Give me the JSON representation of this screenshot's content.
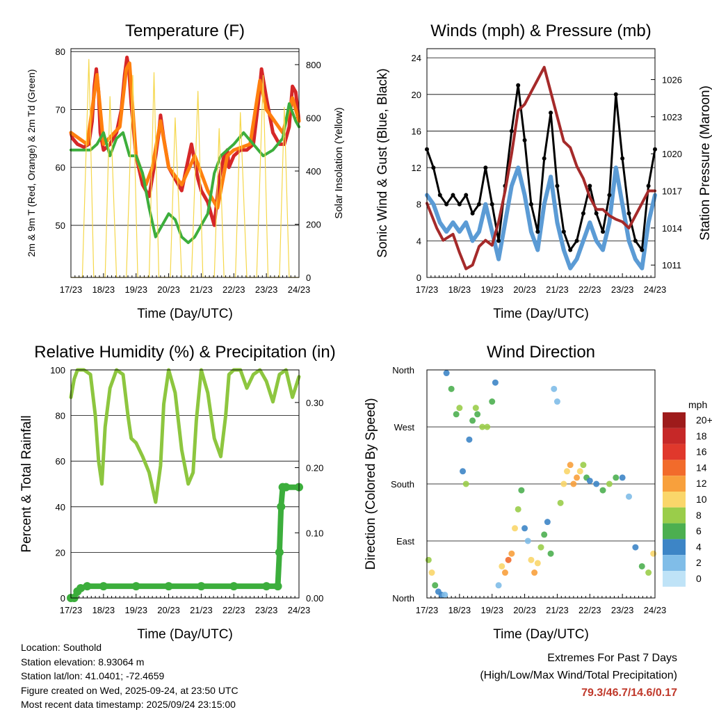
{
  "panels": {
    "temperature": {
      "title": "Temperature (F)",
      "ylabel_left": "2m & 9m T (Red, Orange) & 2m Td (Green)",
      "ylabel_right": "Solar Insolation (Yellow)",
      "xlabel": "Time (Day/UTC)"
    },
    "winds": {
      "title": "Winds (mph) & Pressure (mb)",
      "ylabel_left": "Sonic Wind & Gust (Blue, Black)",
      "ylabel_right": "Station Pressure (Maroon)",
      "xlabel": "Time (Day/UTC)"
    },
    "humidity": {
      "title": "Relative Humidity (%) & Precipitation (in)",
      "ylabel_left": "Percent & Total Rainfall",
      "xlabel": "Time (Day/UTC)"
    },
    "direction": {
      "title": "Wind Direction",
      "ylabel_left": "Direction (Colored By Speed)",
      "xlabel": "Time (Day/UTC)",
      "legend_title": "mph"
    }
  },
  "footer": {
    "location": "Location: Southold",
    "elevation": "Station elevation: 8.93064 m",
    "latlon": "Station lat/lon: 41.0401; -72.4659",
    "created": "Figure created on Wed, 2025-09-24, at 23:50 UTC",
    "recent": "Most recent data timestamp: 2025/09/24 23:15:00"
  },
  "extremes": {
    "title": "Extremes For Past 7 Days",
    "subtitle": "(High/Low/Max Wind/Total Precipitation)",
    "values": "79.3/46.7/14.6/0.17"
  },
  "chart_data": [
    {
      "id": "temperature",
      "type": "line",
      "title": "Temperature (F)",
      "x_ticks": [
        "17/23",
        "18/23",
        "19/23",
        "20/23",
        "21/23",
        "22/23",
        "23/23",
        "24/23"
      ],
      "x_range": [
        0,
        7
      ],
      "y_left": {
        "ticks": [
          50,
          60,
          70,
          80
        ],
        "range": [
          41,
          80.5
        ]
      },
      "y_right": {
        "ticks": [
          0,
          200,
          400,
          600,
          800
        ],
        "range": [
          0,
          860
        ]
      },
      "series": [
        {
          "name": "2m T",
          "color": "#d62728",
          "x": [
            0,
            0.05,
            0.2,
            0.4,
            0.55,
            0.65,
            0.72,
            0.78,
            0.85,
            0.9,
            1.0,
            1.2,
            1.4,
            1.55,
            1.65,
            1.72,
            1.78,
            1.85,
            2.0,
            2.2,
            2.4,
            2.55,
            2.7,
            2.75,
            2.85,
            3.0,
            3.2,
            3.4,
            3.55,
            3.7,
            3.8,
            3.9,
            4.0,
            4.2,
            4.4,
            4.55,
            4.7,
            4.8,
            4.85,
            5.0,
            5.2,
            5.4,
            5.6,
            5.75,
            5.85,
            6.0,
            6.2,
            6.4,
            6.55,
            6.7,
            6.8,
            6.9,
            7.0
          ],
          "y": [
            66,
            65,
            64,
            63.5,
            64,
            68,
            74,
            77,
            73,
            66,
            63,
            64,
            66,
            70,
            76,
            79,
            77,
            71,
            62,
            57,
            55,
            60,
            66,
            69,
            65,
            60,
            58,
            56,
            60,
            64,
            61,
            58,
            56,
            54,
            50,
            58,
            62,
            63,
            60,
            62,
            63,
            63,
            64,
            71,
            77,
            72,
            66,
            64,
            64,
            67,
            74,
            73,
            68
          ]
        },
        {
          "name": "9m T",
          "color": "#ff7f0e",
          "x": [
            0,
            0.5,
            0.7,
            0.8,
            1.0,
            1.5,
            1.7,
            1.8,
            2.0,
            2.3,
            2.5,
            2.75,
            3.0,
            3.4,
            3.8,
            4.2,
            4.5,
            4.8,
            5.0,
            5.5,
            5.8,
            6.0,
            6.5,
            6.8,
            7.0
          ],
          "y": [
            66,
            64,
            72,
            76,
            64,
            67,
            77,
            78,
            62,
            57,
            60,
            68,
            60,
            57,
            62,
            56,
            53,
            62,
            63,
            64,
            75,
            70,
            66,
            72,
            68
          ]
        },
        {
          "name": "2m Td",
          "color": "#3cae3c",
          "x": [
            0,
            0.3,
            0.6,
            0.8,
            1.0,
            1.2,
            1.4,
            1.6,
            1.8,
            2.0,
            2.2,
            2.4,
            2.6,
            2.8,
            3.0,
            3.2,
            3.4,
            3.6,
            3.8,
            4.0,
            4.2,
            4.4,
            4.6,
            4.8,
            5.0,
            5.3,
            5.6,
            5.9,
            6.2,
            6.5,
            6.7,
            6.9,
            7.0
          ],
          "y": [
            63,
            63,
            63,
            64,
            66,
            62,
            65,
            66,
            62,
            62,
            59,
            53,
            48,
            50,
            52,
            51,
            48,
            47,
            48,
            50,
            52,
            59,
            62,
            63,
            64,
            66,
            64,
            62,
            63,
            65,
            71,
            68,
            67
          ]
        },
        {
          "name": "Solar Insolation",
          "color": "#f5d74a",
          "axis": "right",
          "x": [
            0,
            0.35,
            0.55,
            0.7,
            0.9,
            1.05,
            1.2,
            1.4,
            1.55,
            1.7,
            1.9,
            2.05,
            2.2,
            2.4,
            2.55,
            2.7,
            2.9,
            3.05,
            3.2,
            3.4,
            3.55,
            3.7,
            3.9,
            4.05,
            4.2,
            4.4,
            4.55,
            4.7,
            4.9,
            5.05,
            5.2,
            5.4,
            5.55,
            5.7,
            5.9,
            6.05,
            6.2,
            6.4,
            6.55,
            6.7,
            6.9,
            7.0
          ],
          "y": [
            0,
            0,
            820,
            0,
            0,
            0,
            680,
            0,
            0,
            0,
            760,
            0,
            0,
            0,
            770,
            0,
            0,
            0,
            600,
            0,
            0,
            0,
            700,
            0,
            0,
            0,
            560,
            0,
            0,
            0,
            620,
            0,
            0,
            0,
            760,
            0,
            0,
            0,
            640,
            0,
            0,
            0
          ]
        }
      ]
    },
    {
      "id": "winds",
      "type": "line",
      "title": "Winds (mph) & Pressure (mb)",
      "x_ticks": [
        "17/23",
        "18/23",
        "19/23",
        "20/23",
        "21/23",
        "22/23",
        "23/23",
        "24/23"
      ],
      "x_range": [
        0,
        7
      ],
      "y_left": {
        "ticks": [
          0,
          4,
          8,
          12,
          16,
          20,
          24
        ],
        "range": [
          0,
          25
        ]
      },
      "y_right": {
        "ticks": [
          1011,
          1014,
          1017,
          1020,
          1023,
          1026
        ],
        "range": [
          1010,
          1028.5
        ]
      },
      "series": [
        {
          "name": "Sonic Wind",
          "color": "#5b9bd5",
          "axis": "left",
          "x": [
            0,
            0.2,
            0.4,
            0.6,
            0.8,
            1.0,
            1.2,
            1.4,
            1.6,
            1.8,
            2.0,
            2.2,
            2.4,
            2.6,
            2.8,
            3.0,
            3.2,
            3.4,
            3.6,
            3.8,
            4.0,
            4.2,
            4.4,
            4.6,
            4.8,
            5.0,
            5.2,
            5.4,
            5.6,
            5.8,
            6.0,
            6.2,
            6.4,
            6.6,
            6.8,
            7.0
          ],
          "y": [
            9,
            8,
            6,
            5,
            6,
            5,
            6,
            4,
            5,
            8,
            5,
            2,
            6,
            10,
            12,
            9,
            5,
            3,
            8,
            11,
            6,
            3,
            1,
            2,
            4,
            6,
            4,
            3,
            6,
            12,
            8,
            4,
            2,
            1,
            6,
            9
          ]
        },
        {
          "name": "Gust",
          "color": "#000000",
          "axis": "left",
          "x": [
            0,
            0.2,
            0.4,
            0.6,
            0.8,
            1.0,
            1.2,
            1.4,
            1.6,
            1.8,
            2.0,
            2.2,
            2.4,
            2.6,
            2.8,
            3.0,
            3.2,
            3.4,
            3.6,
            3.8,
            4.0,
            4.2,
            4.4,
            4.6,
            4.8,
            5.0,
            5.2,
            5.4,
            5.6,
            5.8,
            6.0,
            6.2,
            6.4,
            6.6,
            6.8,
            7.0
          ],
          "y": [
            14,
            12,
            9,
            8,
            9,
            8,
            9,
            7,
            8,
            12,
            8,
            4,
            10,
            16,
            21,
            15,
            8,
            5,
            13,
            18,
            10,
            5,
            3,
            4,
            7,
            10,
            7,
            5,
            9,
            20,
            13,
            7,
            4,
            3,
            10,
            14
          ]
        },
        {
          "name": "Station Pressure",
          "color": "#a52a2a",
          "axis": "right",
          "x": [
            0,
            0.3,
            0.5,
            0.8,
            1.0,
            1.2,
            1.4,
            1.6,
            1.8,
            2.0,
            2.2,
            2.4,
            2.6,
            2.8,
            3.0,
            3.2,
            3.4,
            3.6,
            3.8,
            4.0,
            4.2,
            4.4,
            4.6,
            4.8,
            5.0,
            5.2,
            5.4,
            5.6,
            5.8,
            6.0,
            6.2,
            6.4,
            6.6,
            6.8,
            7.0
          ],
          "y": [
            1016,
            1014,
            1013,
            1013.5,
            1012,
            1010.7,
            1011,
            1012.5,
            1013,
            1012.6,
            1014.5,
            1017,
            1020,
            1023.5,
            1024,
            1025,
            1026,
            1027,
            1025,
            1023,
            1021,
            1020.5,
            1019,
            1018,
            1016.5,
            1015.5,
            1015.5,
            1015,
            1014.7,
            1014.5,
            1014,
            1015,
            1016,
            1017,
            1017
          ]
        }
      ]
    },
    {
      "id": "humidity",
      "type": "line",
      "title": "Relative Humidity (%) & Precipitation (in)",
      "x_ticks": [
        "17/23",
        "18/23",
        "19/23",
        "20/23",
        "21/23",
        "22/23",
        "23/23",
        "24/23"
      ],
      "x_range": [
        0,
        7
      ],
      "y_left": {
        "ticks": [
          0,
          20,
          40,
          60,
          80,
          100
        ],
        "range": [
          0,
          100
        ]
      },
      "y_right": {
        "ticks": [
          "0.00",
          "0.10",
          "0.20",
          "0.30"
        ],
        "range": [
          0,
          0.35
        ]
      },
      "series": [
        {
          "name": "Relative Humidity",
          "color": "#8dc63f",
          "axis": "left",
          "x": [
            0,
            0.1,
            0.2,
            0.4,
            0.6,
            0.75,
            0.85,
            0.95,
            1.05,
            1.2,
            1.4,
            1.6,
            1.75,
            1.85,
            2.0,
            2.2,
            2.4,
            2.6,
            2.75,
            2.85,
            3.0,
            3.2,
            3.4,
            3.6,
            3.75,
            3.85,
            4.0,
            4.2,
            4.4,
            4.6,
            4.75,
            4.85,
            5.0,
            5.2,
            5.4,
            5.6,
            5.8,
            6.0,
            6.2,
            6.4,
            6.6,
            6.8,
            7.0
          ],
          "y": [
            88,
            96,
            100,
            100,
            98,
            80,
            60,
            50,
            75,
            92,
            100,
            98,
            80,
            70,
            68,
            62,
            55,
            42,
            58,
            85,
            100,
            90,
            65,
            50,
            55,
            78,
            100,
            90,
            70,
            62,
            80,
            98,
            100,
            100,
            92,
            98,
            100,
            95,
            86,
            98,
            100,
            88,
            97
          ]
        },
        {
          "name": "Total Precipitation",
          "color": "#3cae3c",
          "axis": "right",
          "x": [
            0,
            0.1,
            0.2,
            0.3,
            0.5,
            1.0,
            2.0,
            3.0,
            4.0,
            5.0,
            6.0,
            6.35,
            6.4,
            6.45,
            6.5,
            6.6,
            7.0
          ],
          "y": [
            0,
            0,
            0.01,
            0.015,
            0.018,
            0.018,
            0.018,
            0.018,
            0.018,
            0.018,
            0.018,
            0.018,
            0.07,
            0.14,
            0.17,
            0.17,
            0.17
          ]
        }
      ]
    },
    {
      "id": "direction",
      "type": "scatter",
      "title": "Wind Direction",
      "x_ticks": [
        "17/23",
        "18/23",
        "19/23",
        "20/23",
        "21/23",
        "22/23",
        "23/23",
        "24/23"
      ],
      "x_range": [
        0,
        7
      ],
      "y_ticks": [
        "North",
        "East",
        "South",
        "West",
        "North"
      ],
      "y_range": [
        0,
        360
      ],
      "legend": {
        "title": "mph",
        "labels": [
          "20+",
          "18",
          "16",
          "14",
          "12",
          "10",
          "8",
          "6",
          "4",
          "2",
          "0"
        ],
        "colors": [
          "#9e1b1b",
          "#c62828",
          "#e0382c",
          "#f26b2b",
          "#f8a03c",
          "#fad66a",
          "#9acd4a",
          "#4caf50",
          "#3d85c6",
          "#80bde8",
          "#bfe3f7"
        ]
      },
      "points_x": [
        0.05,
        0.15,
        0.25,
        0.35,
        0.45,
        0.55,
        0.6,
        0.75,
        0.9,
        1.0,
        1.1,
        1.2,
        1.3,
        1.4,
        1.5,
        1.55,
        1.7,
        1.85,
        2.0,
        2.1,
        2.2,
        2.3,
        2.4,
        2.5,
        2.6,
        2.7,
        2.8,
        2.9,
        3.0,
        3.1,
        3.2,
        3.3,
        3.4,
        3.5,
        3.6,
        3.7,
        3.8,
        3.9,
        4.0,
        4.1,
        4.2,
        4.3,
        4.4,
        4.5,
        4.6,
        4.7,
        4.8,
        4.9,
        5.0,
        5.2,
        5.4,
        5.6,
        5.8,
        6.0,
        6.2,
        6.4,
        6.6,
        6.8,
        6.95
      ],
      "points_y": [
        60,
        40,
        20,
        10,
        5,
        5,
        355,
        330,
        290,
        300,
        200,
        180,
        250,
        280,
        300,
        290,
        270,
        270,
        310,
        340,
        20,
        50,
        40,
        60,
        70,
        110,
        140,
        170,
        110,
        90,
        60,
        40,
        55,
        80,
        100,
        120,
        70,
        330,
        310,
        150,
        180,
        200,
        210,
        180,
        190,
        200,
        210,
        190,
        185,
        180,
        170,
        180,
        190,
        190,
        160,
        80,
        50,
        40,
        70
      ],
      "points_speed": [
        8,
        10,
        6,
        4,
        4,
        2,
        4,
        6,
        6,
        8,
        4,
        8,
        4,
        6,
        8,
        6,
        8,
        8,
        6,
        4,
        2,
        10,
        12,
        14,
        12,
        10,
        8,
        6,
        4,
        2,
        10,
        12,
        10,
        8,
        6,
        4,
        6,
        2,
        2,
        8,
        10,
        10,
        12,
        12,
        12,
        10,
        8,
        6,
        4,
        4,
        6,
        8,
        6,
        4,
        2,
        4,
        6,
        8,
        10
      ]
    }
  ]
}
